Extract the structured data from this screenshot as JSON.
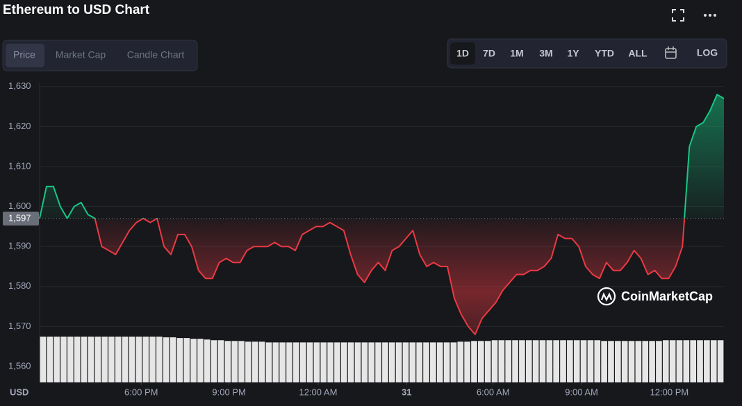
{
  "chart_data": {
    "type": "line",
    "title": "Ethereum to USD Chart",
    "tabs": [
      "Price",
      "Market Cap",
      "Candle Chart"
    ],
    "ranges": [
      "1D",
      "7D",
      "1M",
      "3M",
      "1Y",
      "YTD",
      "ALL"
    ],
    "log_button": "LOG",
    "y_unit": "USD",
    "watermark": "CoinMarketCap",
    "up_color": "#16c784",
    "down_color": "#ea3943",
    "volume_color": "#e6e6e6",
    "baseline": {
      "value": 1597,
      "label": "1,597"
    },
    "values": [
      1597,
      1605,
      1605,
      1600,
      1597,
      1600,
      1601,
      1598,
      1597,
      1590,
      1589,
      1588,
      1591,
      1594,
      1596,
      1597,
      1596,
      1597,
      1590,
      1588,
      1593,
      1593,
      1590,
      1584,
      1582,
      1582,
      1586,
      1587,
      1586,
      1586,
      1589,
      1590,
      1590,
      1590,
      1591,
      1590,
      1590,
      1589,
      1593,
      1594,
      1595,
      1595,
      1596,
      1595,
      1594,
      1588,
      1583,
      1581,
      1584,
      1586,
      1584,
      1589,
      1590,
      1592,
      1594,
      1588,
      1585,
      1586,
      1585,
      1585,
      1577,
      1573,
      1570,
      1568,
      1572,
      1574,
      1576,
      1579,
      1581,
      1583,
      1583,
      1584,
      1584,
      1585,
      1587,
      1593,
      1592,
      1592,
      1590,
      1585,
      1583,
      1582,
      1586,
      1584,
      1584,
      1586,
      1589,
      1587,
      1583,
      1584,
      1582,
      1582,
      1585,
      1590,
      1615,
      1620,
      1621,
      1624,
      1628,
      1627
    ],
    "volume_values": [
      63,
      63,
      63,
      63,
      63,
      63,
      63,
      63,
      63,
      63,
      63,
      63,
      63,
      63,
      63,
      63,
      63,
      63,
      62,
      62,
      61,
      61,
      60,
      60,
      59,
      58,
      58,
      57,
      57,
      57,
      56,
      56,
      56,
      55,
      55,
      55,
      55,
      55,
      55,
      55,
      55,
      55,
      55,
      55,
      55,
      55,
      55,
      55,
      55,
      55,
      55,
      55,
      55,
      55,
      55,
      55,
      55,
      55,
      55,
      55,
      55,
      56,
      56,
      57,
      57,
      57,
      58,
      58,
      58,
      58,
      58,
      58,
      58,
      58,
      58,
      58,
      58,
      58,
      58,
      58,
      58,
      58,
      57,
      57,
      57,
      57,
      57,
      57,
      57,
      57,
      57,
      58,
      58,
      58,
      58,
      58,
      58,
      58,
      58,
      58
    ],
    "xlim": [
      0,
      99
    ],
    "xticks": [
      {
        "value": 14.7,
        "label": "6:00 PM"
      },
      {
        "value": 27.4,
        "label": "9:00 PM"
      },
      {
        "value": 40.3,
        "label": "12:00 AM"
      },
      {
        "value": 53.1,
        "label": "31"
      },
      {
        "value": 65.6,
        "label": "6:00 AM"
      },
      {
        "value": 78.4,
        "label": "9:00 AM"
      },
      {
        "value": 91.1,
        "label": "12:00 PM"
      }
    ],
    "ylim": [
      1556,
      1631
    ],
    "yticks": [
      {
        "value": 1560,
        "label": "1,560"
      },
      {
        "value": 1570,
        "label": "1,570"
      },
      {
        "value": 1580,
        "label": "1,580"
      },
      {
        "value": 1590,
        "label": "1,590"
      },
      {
        "value": 1600,
        "label": "1,600"
      },
      {
        "value": 1610,
        "label": "1,610"
      },
      {
        "value": 1620,
        "label": "1,620"
      },
      {
        "value": 1630,
        "label": "1,630"
      }
    ],
    "grid": true
  }
}
